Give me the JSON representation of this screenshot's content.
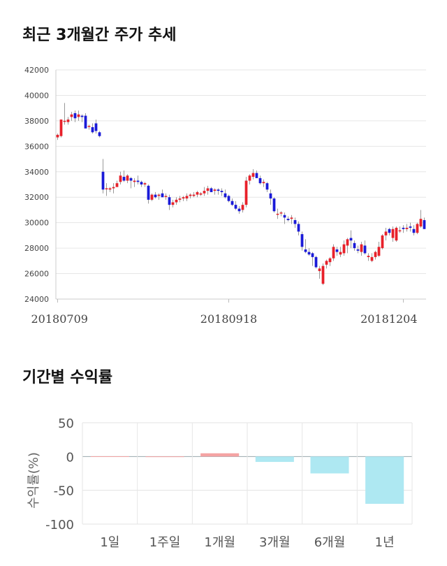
{
  "titles": {
    "price_trend": "최근 3개월간 주가 추세",
    "returns": "기간별 수익률"
  },
  "chart_data": [
    {
      "type": "candlestick",
      "title": "최근 3개월간 주가 추세",
      "ylim": [
        24000,
        42000
      ],
      "yticks": [
        "42000",
        "40000",
        "38000",
        "36000",
        "34000",
        "32000",
        "30000",
        "28000",
        "26000",
        "24000"
      ],
      "x_tick_labels": [
        "20180709",
        "20180918",
        "20181204"
      ],
      "x_tick_index": [
        0,
        49,
        99
      ],
      "colors": {
        "up": "#e8202a",
        "down": "#1a1ad8",
        "wick": "#999999"
      },
      "ohlc": [
        [
          36700,
          37000,
          36500,
          36900
        ],
        [
          36800,
          38100,
          36700,
          38100
        ],
        [
          38000,
          39400,
          37700,
          38000
        ],
        [
          37900,
          38300,
          37700,
          38100
        ],
        [
          38300,
          38700,
          38000,
          38500
        ],
        [
          38600,
          38800,
          37900,
          38200
        ],
        [
          38300,
          38800,
          38000,
          38500
        ],
        [
          38400,
          38500,
          37900,
          38300
        ],
        [
          38400,
          38600,
          37400,
          37400
        ],
        [
          37600,
          37700,
          37300,
          37600
        ],
        [
          37500,
          37800,
          37000,
          37100
        ],
        [
          37800,
          38100,
          37000,
          37200
        ],
        [
          37100,
          37200,
          36700,
          36800
        ],
        [
          34000,
          35000,
          32300,
          32600
        ],
        [
          32700,
          33100,
          32100,
          32700
        ],
        [
          32600,
          32800,
          32400,
          32700
        ],
        [
          32700,
          33100,
          32300,
          32800
        ],
        [
          32800,
          33300,
          32800,
          33100
        ],
        [
          33200,
          34000,
          33000,
          33700
        ],
        [
          33600,
          34100,
          33200,
          33300
        ],
        [
          33300,
          33800,
          33100,
          33700
        ],
        [
          33500,
          33600,
          32700,
          33300
        ],
        [
          33200,
          33500,
          32800,
          33300
        ],
        [
          33300,
          33700,
          33000,
          33200
        ],
        [
          33200,
          33300,
          32800,
          33000
        ],
        [
          33000,
          33200,
          32800,
          33100
        ],
        [
          32900,
          33000,
          31500,
          31800
        ],
        [
          31800,
          32300,
          31700,
          32200
        ],
        [
          32200,
          32400,
          31900,
          32000
        ],
        [
          32100,
          32300,
          31800,
          32200
        ],
        [
          32300,
          32600,
          32000,
          32000
        ],
        [
          32100,
          32300,
          31800,
          32100
        ],
        [
          32000,
          32200,
          31000,
          31400
        ],
        [
          31400,
          31800,
          31200,
          31600
        ],
        [
          31600,
          32000,
          31400,
          31800
        ],
        [
          31800,
          32100,
          31600,
          31900
        ],
        [
          31900,
          32100,
          31700,
          32000
        ],
        [
          31900,
          32300,
          31700,
          32100
        ],
        [
          32100,
          32300,
          31900,
          32200
        ],
        [
          32100,
          32400,
          32000,
          32200
        ],
        [
          32200,
          32500,
          32000,
          32400
        ],
        [
          32200,
          32400,
          32100,
          32300
        ],
        [
          32300,
          32800,
          32100,
          32500
        ],
        [
          32500,
          32900,
          32200,
          32700
        ],
        [
          32700,
          32800,
          32400,
          32400
        ],
        [
          32500,
          32700,
          32200,
          32600
        ],
        [
          32600,
          32700,
          32200,
          32500
        ],
        [
          32500,
          32700,
          32100,
          32400
        ],
        [
          32300,
          32600,
          31900,
          32000
        ],
        [
          32100,
          32200,
          31600,
          31700
        ],
        [
          31700,
          31900,
          31300,
          31400
        ],
        [
          31400,
          31700,
          31000,
          31100
        ],
        [
          31100,
          31300,
          30700,
          30900
        ],
        [
          31000,
          31600,
          30800,
          31400
        ],
        [
          31400,
          33600,
          31200,
          33300
        ],
        [
          33300,
          33800,
          33000,
          33700
        ],
        [
          33600,
          34200,
          33400,
          33900
        ],
        [
          33900,
          34100,
          33500,
          33500
        ],
        [
          33500,
          33700,
          33000,
          33100
        ],
        [
          33100,
          33400,
          32800,
          33200
        ],
        [
          33100,
          33200,
          32400,
          32600
        ],
        [
          32300,
          32600,
          31400,
          31900
        ],
        [
          31900,
          32000,
          30800,
          30900
        ],
        [
          30700,
          31100,
          30300,
          30700
        ],
        [
          30800,
          30900,
          30500,
          30800
        ],
        [
          30600,
          30800,
          29900,
          30400
        ],
        [
          30300,
          30500,
          30100,
          30200
        ],
        [
          30300,
          30600,
          29900,
          30400
        ],
        [
          30200,
          30400,
          29600,
          29900
        ],
        [
          29900,
          30100,
          29000,
          29300
        ],
        [
          29100,
          29300,
          27800,
          28100
        ],
        [
          27900,
          28700,
          27600,
          27700
        ],
        [
          27700,
          28000,
          27400,
          27500
        ],
        [
          27600,
          27700,
          26600,
          27300
        ],
        [
          27300,
          27400,
          26400,
          26500
        ],
        [
          26200,
          26600,
          25600,
          26400
        ],
        [
          25200,
          26800,
          25100,
          26600
        ],
        [
          26700,
          27100,
          26400,
          27000
        ],
        [
          26900,
          27300,
          26600,
          27200
        ],
        [
          27200,
          28300,
          27000,
          28100
        ],
        [
          27900,
          28100,
          27400,
          27700
        ],
        [
          27500,
          28100,
          27300,
          27700
        ],
        [
          27600,
          28600,
          27400,
          28300
        ],
        [
          28200,
          28800,
          27600,
          28700
        ],
        [
          28800,
          29400,
          28000,
          28600
        ],
        [
          28400,
          28600,
          27800,
          28000
        ],
        [
          27900,
          28200,
          27600,
          27800
        ],
        [
          27700,
          28500,
          27400,
          28300
        ],
        [
          28200,
          28600,
          27500,
          27600
        ],
        [
          27300,
          27600,
          27000,
          27400
        ],
        [
          27000,
          27600,
          26900,
          27300
        ],
        [
          27300,
          27800,
          27100,
          27700
        ],
        [
          27400,
          28500,
          27300,
          28100
        ],
        [
          28000,
          29100,
          27900,
          29000
        ],
        [
          29000,
          29600,
          28600,
          29300
        ],
        [
          29500,
          29600,
          29000,
          29200
        ],
        [
          28800,
          29700,
          28500,
          29500
        ],
        [
          28600,
          29700,
          28500,
          29600
        ],
        [
          29400,
          29700,
          29200,
          29400
        ],
        [
          29600,
          29800,
          29200,
          29500
        ],
        [
          29500,
          29900,
          29300,
          29600
        ],
        [
          29700,
          30000,
          29300,
          29600
        ],
        [
          29500,
          29800,
          29000,
          29200
        ],
        [
          29200,
          30000,
          29100,
          29900
        ],
        [
          29700,
          31000,
          29600,
          30300
        ],
        [
          30200,
          30400,
          29500,
          29500
        ]
      ]
    },
    {
      "type": "bar",
      "title": "기간별 수익률",
      "ylabel": "수익률(%)",
      "ylim": [
        -100,
        50
      ],
      "yticks": [
        "50",
        "0",
        "-50",
        "-100"
      ],
      "categories": [
        "1일",
        "1주일",
        "1개월",
        "3개월",
        "6개월",
        "1년"
      ],
      "values": [
        0.4,
        0.2,
        4.8,
        -8.0,
        -25.0,
        -70.0
      ],
      "colors": {
        "positive": "#f4a3a3",
        "negative": "#aee8f2"
      }
    }
  ]
}
